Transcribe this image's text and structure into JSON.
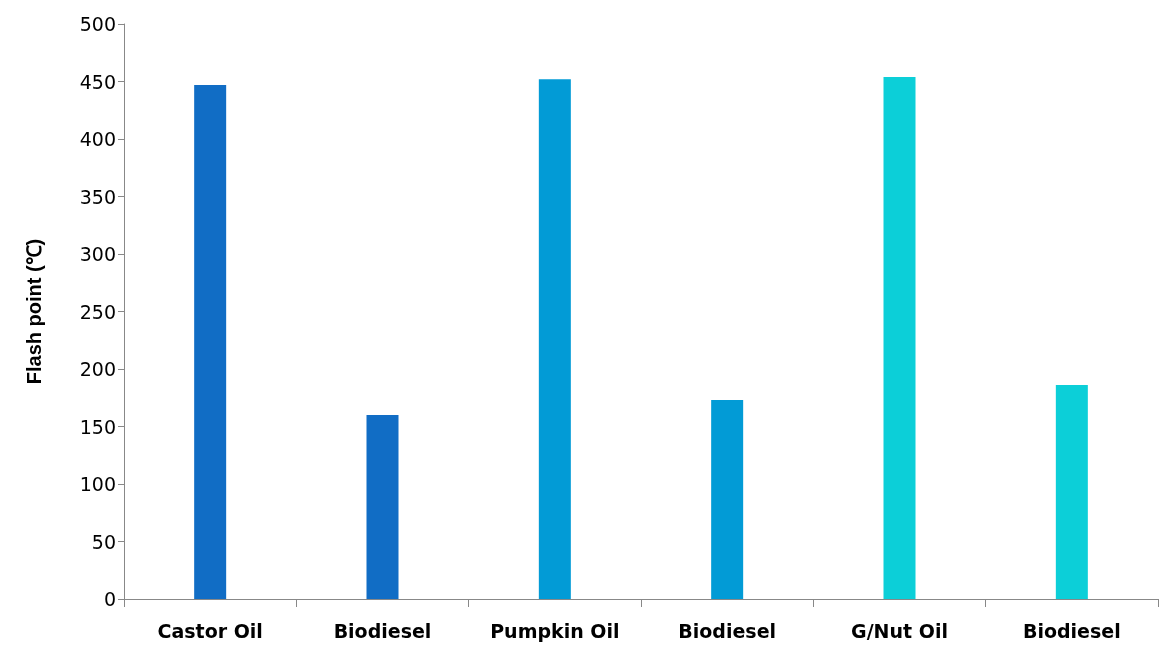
{
  "chart_data": {
    "type": "bar",
    "ylabel": "Flash point (℃)",
    "categories": [
      "Castor Oil",
      "Biodiesel",
      "Pumpkin Oil",
      "Biodiesel",
      "G/Nut Oil",
      "Biodiesel"
    ],
    "values": [
      447,
      160,
      452,
      173,
      454,
      186
    ],
    "colors": [
      "#116dc5",
      "#116dc5",
      "#029bd6",
      "#029bd6",
      "#0ccfd8",
      "#0ccfd8"
    ],
    "ylim": [
      0,
      500
    ],
    "yticks": [
      0,
      50,
      100,
      150,
      200,
      250,
      300,
      350,
      400,
      450,
      500
    ],
    "grid": false
  }
}
